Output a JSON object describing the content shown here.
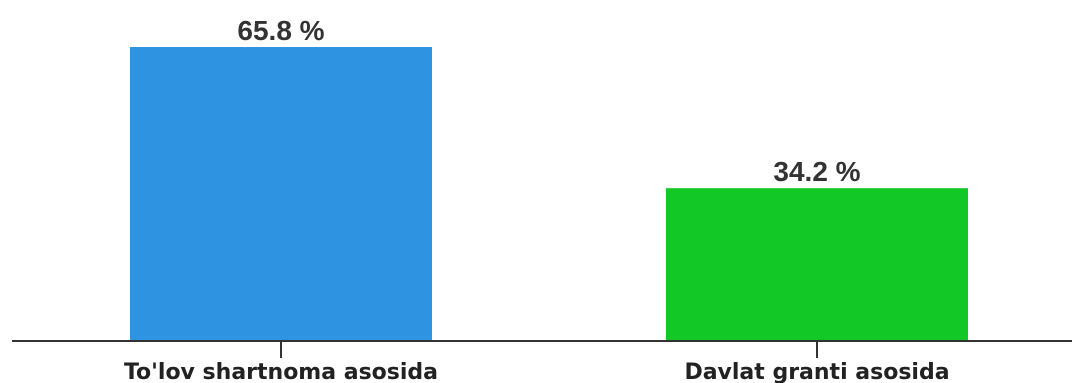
{
  "chart_data": {
    "type": "bar",
    "categories": [
      "To'lov shartnoma asosida",
      "Davlat granti asosida"
    ],
    "values": [
      65.8,
      34.2
    ],
    "value_labels": [
      "65.8 %",
      "34.2 %"
    ],
    "colors": [
      "#2e93e0",
      "#12c826"
    ],
    "ylim": [
      0,
      65.8
    ],
    "grid": false,
    "legend": "none"
  }
}
